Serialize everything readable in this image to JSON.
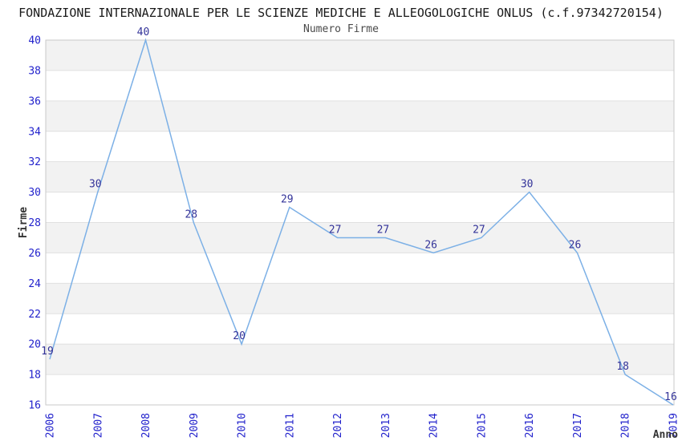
{
  "chart_data": {
    "type": "line",
    "main_title": "FONDAZIONE INTERNAZIONALE PER LE SCIENZE MEDICHE E ALLEOGOLOGICHE ONLUS (c.f.97342720154)",
    "title": "Numero Firme",
    "categories": [
      "2006",
      "2007",
      "2008",
      "2009",
      "2010",
      "2011",
      "2012",
      "2013",
      "2014",
      "2015",
      "2016",
      "2017",
      "2018",
      "2019"
    ],
    "values": [
      19,
      30,
      40,
      28,
      20,
      29,
      27,
      27,
      26,
      27,
      30,
      26,
      18,
      16
    ],
    "series_name": "Firme",
    "xlabel": "Anno",
    "ylabel": "Firme",
    "ylim": [
      16,
      40
    ],
    "ytick_step": 2,
    "yticks": [
      16,
      18,
      20,
      22,
      24,
      26,
      28,
      30,
      32,
      34,
      36,
      38,
      40
    ],
    "grid": true,
    "legend": "none",
    "x_tick_rotation": -90,
    "data_labels": true,
    "point_markers": false,
    "colors": {
      "line": "#7cb0e6",
      "data_label": "#333399",
      "tick_label": "#2222cc",
      "axis_title": "#333333",
      "band_fill": "#f2f2f2",
      "grid_line": "#e0e0e0",
      "plot_border": "#c8c8c8",
      "title": "#1a1a1a",
      "subtitle": "#4a4a4a",
      "background": "#ffffff"
    }
  }
}
